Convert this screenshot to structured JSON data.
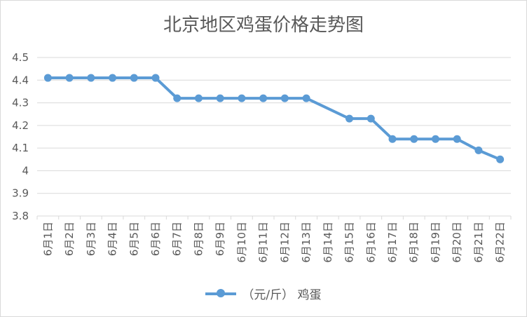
{
  "chart_data": {
    "type": "line",
    "title": "北京地区鸡蛋价格走势图",
    "categories": [
      "6月1日",
      "6月2日",
      "6月3日",
      "6月4日",
      "6月5日",
      "6月6日",
      "6月7日",
      "6月8日",
      "6月9日",
      "6月10日",
      "6月11日",
      "6月12日",
      "6月13日",
      "6月14日",
      "6月15日",
      "6月16日",
      "6月17日",
      "6月18日",
      "6月19日",
      "6月20日",
      "6月21日",
      "6月22日"
    ],
    "series": [
      {
        "name": "（元/斤） 鸡蛋",
        "color": "#5b9bd5",
        "values": [
          4.41,
          4.41,
          4.41,
          4.41,
          4.41,
          4.41,
          4.32,
          4.32,
          4.32,
          4.32,
          4.32,
          4.32,
          4.32,
          null,
          4.23,
          4.23,
          4.14,
          4.14,
          4.14,
          4.14,
          4.09,
          4.05
        ]
      }
    ],
    "ylim": [
      3.8,
      4.5
    ],
    "yticks": [
      "3.8",
      "3.9",
      "4",
      "4.1",
      "4.2",
      "4.3",
      "4.4",
      "4.5"
    ],
    "grid": true,
    "legend_position": "bottom"
  }
}
